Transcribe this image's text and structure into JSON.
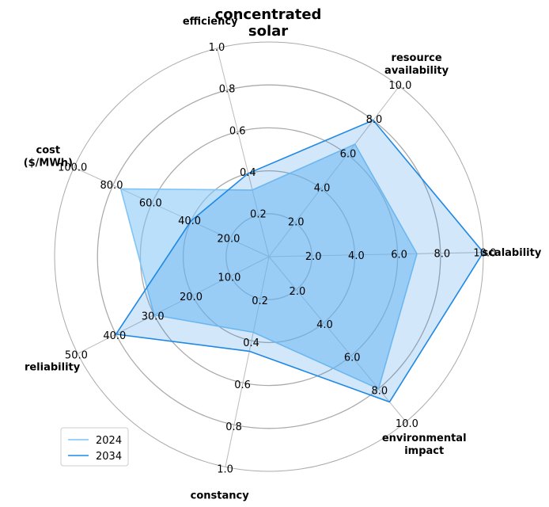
{
  "chart_data": {
    "type": "radar",
    "title": "concentrated solar",
    "axes": [
      {
        "label": "efficiency",
        "max": 1.0,
        "ticks": [
          "0.2",
          "0.4",
          "0.6",
          "0.8",
          "1.0"
        ]
      },
      {
        "label": "resource availability",
        "max": 10.0,
        "ticks": [
          "2.0",
          "4.0",
          "6.0",
          "8.0",
          "10.0"
        ]
      },
      {
        "label": "scalability",
        "max": 10.0,
        "ticks": [
          "2.0",
          "4.0",
          "6.0",
          "8.0",
          "10.0"
        ]
      },
      {
        "label": "environmental impact",
        "max": 10.0,
        "ticks": [
          "2.0",
          "4.0",
          "6.0",
          "8.0",
          "10.0"
        ]
      },
      {
        "label": "constancy",
        "max": 1.0,
        "ticks": [
          "0.2",
          "0.4",
          "0.6",
          "0.8",
          "1.0"
        ]
      },
      {
        "label": "reliability",
        "max": 50.0,
        "ticks": [
          "10.0",
          "20.0",
          "30.0",
          "40.0",
          "50.0"
        ]
      },
      {
        "label": "cost ($/MWh)",
        "max": 100.0,
        "ticks": [
          "20.0",
          "40.0",
          "60.0",
          "80.0",
          "100.0"
        ]
      }
    ],
    "series": [
      {
        "name": "2024",
        "values": [
          0.32,
          6.6,
          6.9,
          8.0,
          0.36,
          30.0,
          76.0
        ],
        "color": "#7fc4f5",
        "fill_opacity": 0.55
      },
      {
        "name": "2034",
        "values": [
          0.4,
          8.0,
          10.0,
          8.8,
          0.45,
          40.0,
          40.0
        ],
        "color": "#1e88e5",
        "fill_opacity": 0.2
      }
    ],
    "legend_position": "lower-left",
    "grid": true
  }
}
